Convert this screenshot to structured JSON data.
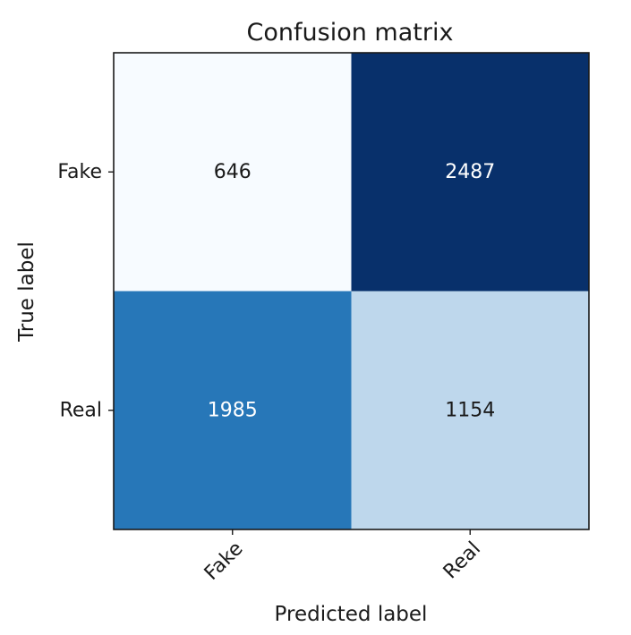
{
  "chart_data": {
    "type": "heatmap",
    "title": "Confusion matrix",
    "xlabel": "Predicted label",
    "ylabel": "True label",
    "x_categories": [
      "Fake",
      "Real"
    ],
    "y_categories": [
      "Fake",
      "Real"
    ],
    "values": [
      [
        646,
        2487
      ],
      [
        1985,
        1154
      ]
    ],
    "colormap": "Blues",
    "color_range": [
      646,
      2487
    ],
    "text_color_dark": "#1a1a1a",
    "text_color_light": "#ffffff",
    "frame_color": "#1a1a1a"
  }
}
